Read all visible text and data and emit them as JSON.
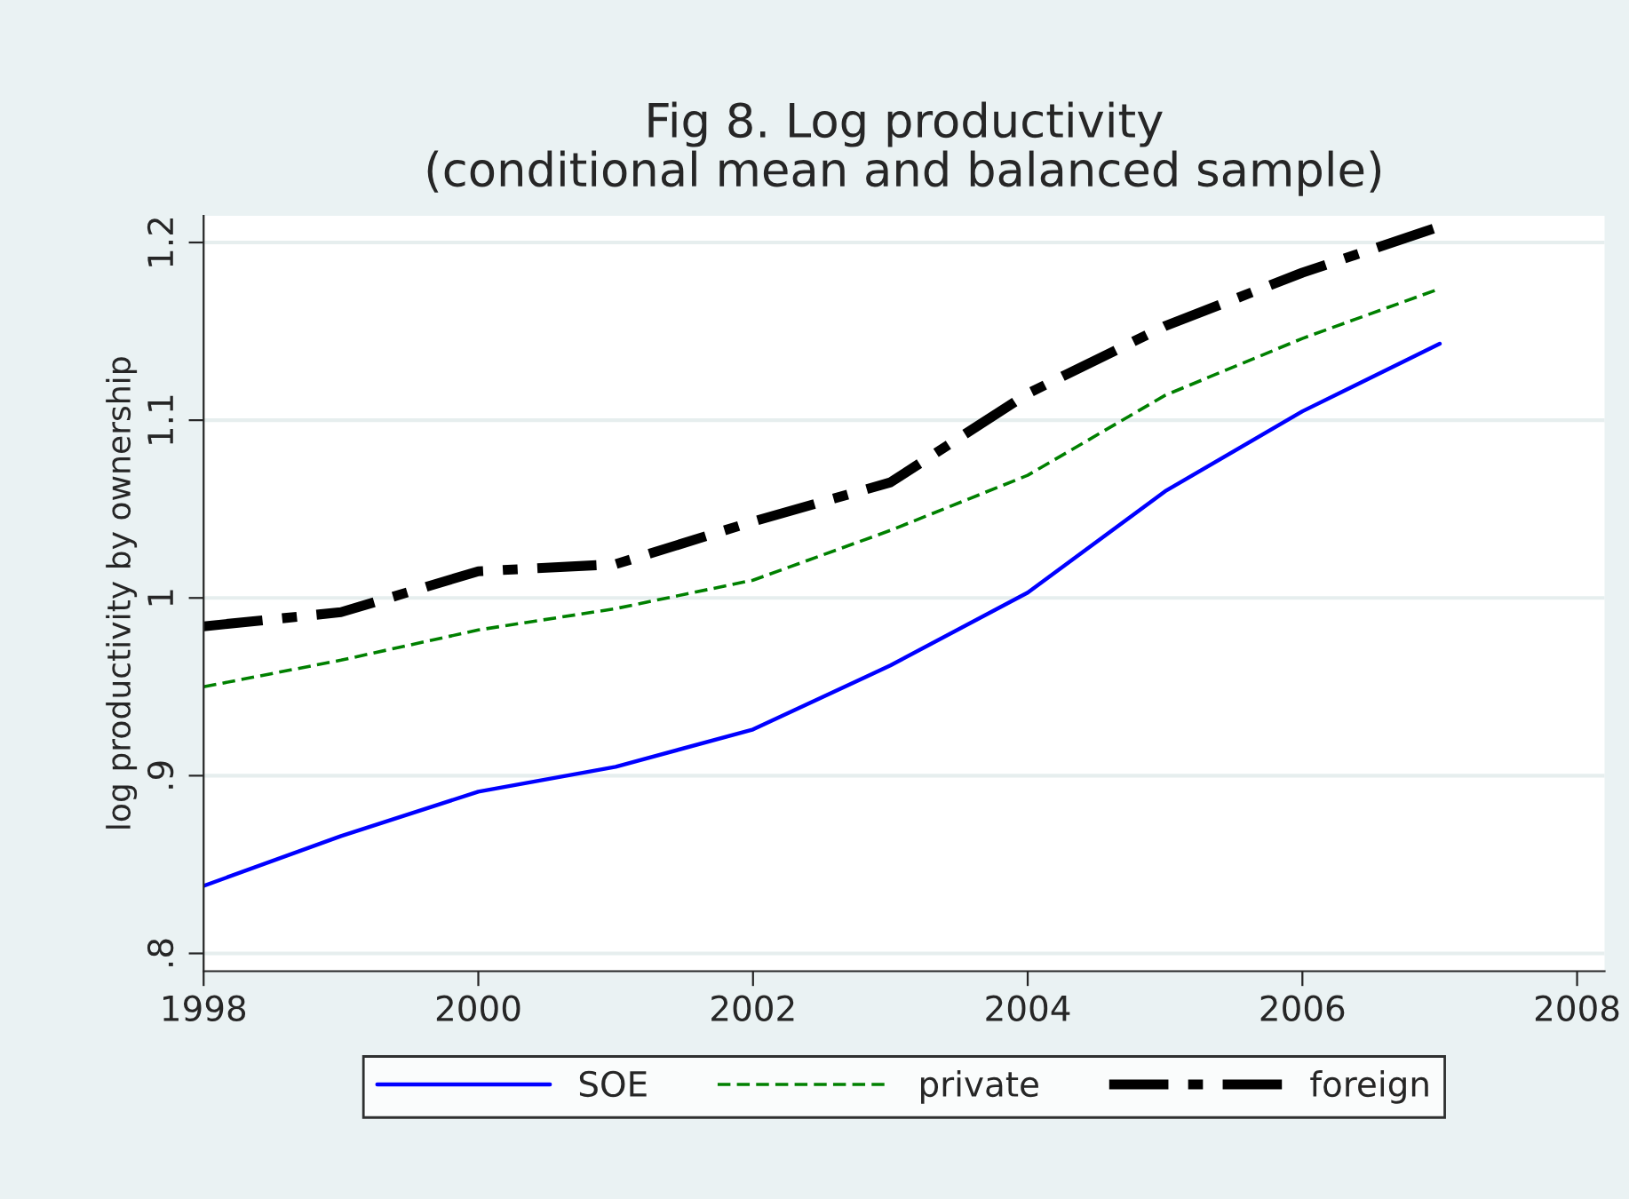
{
  "chart_data": {
    "type": "line",
    "title": "Fig 8. Log productivity\n(conditional mean and balanced sample)",
    "ylabel": "log productivity by ownership",
    "x": [
      1998,
      1999,
      2000,
      2001,
      2002,
      2003,
      2004,
      2005,
      2006,
      2007
    ],
    "series": [
      {
        "name": "SOE",
        "color": "#0000ff",
        "line_style": "solid",
        "values": [
          0.838,
          0.866,
          0.891,
          0.905,
          0.926,
          0.962,
          1.003,
          1.06,
          1.105,
          1.143
        ]
      },
      {
        "name": "private",
        "color": "#008000",
        "line_style": "dashed",
        "values": [
          0.95,
          0.965,
          0.982,
          0.994,
          1.01,
          1.038,
          1.069,
          1.114,
          1.146,
          1.174
        ]
      },
      {
        "name": "foreign",
        "color": "#000000",
        "line_style": "dashdot",
        "values": [
          0.984,
          0.992,
          1.015,
          1.019,
          1.043,
          1.065,
          1.115,
          1.153,
          1.183,
          1.209
        ]
      }
    ],
    "xlim": [
      1998,
      2008.2
    ],
    "xticks": [
      1998,
      2000,
      2002,
      2004,
      2006,
      2008
    ],
    "ylim": [
      0.79,
      1.215
    ],
    "yticks": [
      {
        "value": 0.8,
        "label": ".8"
      },
      {
        "value": 0.9,
        "label": ".9"
      },
      1,
      1.1,
      1.2
    ],
    "grid": "y",
    "legend": "bottom",
    "marker": "none"
  }
}
